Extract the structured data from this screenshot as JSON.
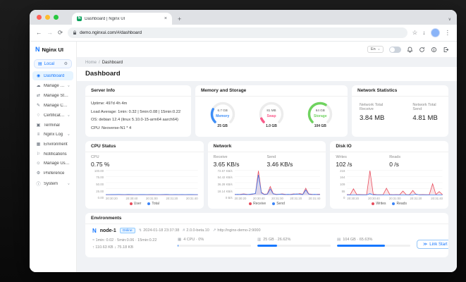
{
  "ui": {
    "chevron": "∨",
    "plus": "+",
    "close": "×",
    "back": "←",
    "forward": "→",
    "reload": "⟳",
    "star": "☆",
    "dots": "⋮",
    "up_arrow": "↑",
    "down_arrow": "↓",
    "sep": "/",
    "dot_sep": "·"
  },
  "browser": {
    "tab_title": "Dashboard | Nginx UI",
    "favicon_letter": "N",
    "url": "demo.nginxui.com/#/dashboard"
  },
  "brand": {
    "initial": "N",
    "name": "Nginx UI"
  },
  "header": {
    "language": "En"
  },
  "sidebar": {
    "selector": {
      "glyph": "▤",
      "label": "Local",
      "gear": "⚙"
    },
    "items": [
      {
        "label": "Dashboard",
        "glyph": "◉",
        "active": true
      },
      {
        "label": "Manage Sites",
        "glyph": "☁",
        "expandable": true
      },
      {
        "label": "Manage Streams",
        "glyph": "⇄"
      },
      {
        "label": "Manage Configs",
        "glyph": "✎"
      },
      {
        "label": "Certificates",
        "glyph": "♢",
        "expandable": true
      },
      {
        "label": "Terminal",
        "glyph": "▣"
      },
      {
        "label": "Nginx Log",
        "glyph": "≡",
        "expandable": true
      },
      {
        "label": "Environment",
        "glyph": "▦"
      },
      {
        "label": "Notifications",
        "glyph": "⚐"
      },
      {
        "label": "Manage Users",
        "glyph": "☺"
      },
      {
        "label": "Preference",
        "glyph": "⚙"
      },
      {
        "label": "System",
        "glyph": "ⓘ",
        "expandable": true
      }
    ]
  },
  "breadcrumb": {
    "home": "Home",
    "current": "Dashboard"
  },
  "page_title": "Dashboard",
  "server_info": {
    "title": "Server Info",
    "uptime": "Uptime: 497d 4h 4m",
    "load": "Load Average: 1min: 0.32 | 5min:0.08 | 15min:0.22",
    "os": "OS: debian 12.4 (linux 5.10.0-15-arm64 aarch64)",
    "cpu": "CPU: Neoverse-N1 * 4"
  },
  "memory_storage": {
    "title": "Memory and Storage",
    "gauges": [
      {
        "name": "Memory",
        "value": "6.7 GB",
        "total": "25 GB",
        "pct": 26.8,
        "color": "#3e8ef7"
      },
      {
        "name": "Swap",
        "value": "81 MB",
        "total": "1.0 GB",
        "pct": 7.9,
        "color": "#fa5a8a"
      },
      {
        "name": "Storage",
        "value": "64 GB",
        "total": "104 GB",
        "pct": 61.5,
        "color": "#6fd35f"
      }
    ]
  },
  "network_stats": {
    "title": "Network Statistics",
    "receive_label": "Network Total Receive",
    "receive_value": "3.84 MB",
    "send_label": "Network Total Send",
    "send_value": "4.81 MB"
  },
  "charts": [
    {
      "type": "line",
      "title": "CPU Status",
      "stats": [
        {
          "label": "CPU",
          "value": "0.75 %"
        }
      ],
      "y_ticks": [
        "100.00",
        "75.00",
        "50.00",
        "25.00",
        "0.00"
      ],
      "ymax": 100,
      "x_ticks": [
        "20:30:20",
        "20:30:40",
        "20:31:00",
        "20:31:20",
        "20:31:40"
      ],
      "ylabel_width": 18,
      "series": [
        {
          "name": "User",
          "color": "#e74c5c",
          "values": [
            0.8,
            0.7,
            0.9,
            0.8,
            1.0,
            0.9,
            0.8,
            1.2,
            0.9,
            0.8,
            0.7,
            0.9,
            0.8,
            0.7,
            1.0,
            0.9,
            0.8,
            0.7,
            0.9,
            1.1,
            0.8,
            0.7,
            0.9,
            0.8,
            1.0,
            0.7,
            0.8,
            0.9,
            0.7,
            0.8
          ]
        },
        {
          "name": "Total",
          "color": "#3a83f7",
          "values": [
            1.5,
            1.4,
            1.8,
            1.6,
            2.0,
            1.7,
            1.5,
            2.2,
            1.8,
            1.5,
            1.4,
            1.7,
            1.6,
            1.4,
            1.9,
            1.7,
            1.5,
            1.4,
            1.8,
            2.1,
            1.6,
            1.4,
            1.7,
            1.5,
            1.9,
            1.4,
            1.6,
            1.7,
            1.4,
            1.5
          ]
        }
      ]
    },
    {
      "type": "area",
      "title": "Network",
      "stats": [
        {
          "label": "Receive",
          "value": "3.65 KB/s"
        },
        {
          "label": "Send",
          "value": "3.46 KB/s"
        }
      ],
      "y_ticks": [
        "72.57 KB/s",
        "54.42 KB/s",
        "36.28 KB/s",
        "18.14 KB/s",
        "0 B/s"
      ],
      "ymax": 72.57,
      "x_ticks": [
        "20:30:20",
        "20:30:40",
        "20:31:00",
        "20:31:20",
        "20:31:40"
      ],
      "ylabel_width": 27,
      "series": [
        {
          "name": "Receive",
          "color": "#e74c5c",
          "values": [
            2,
            1,
            2,
            3,
            2,
            1,
            2,
            5,
            72,
            8,
            2,
            3,
            25,
            4,
            2,
            2,
            3,
            2,
            1,
            2,
            3,
            2,
            4,
            2,
            20,
            3,
            2,
            1,
            2,
            2
          ]
        },
        {
          "name": "Send",
          "color": "#3a83f7",
          "values": [
            1,
            2,
            1,
            2,
            1,
            2,
            3,
            4,
            60,
            6,
            1,
            2,
            18,
            3,
            1,
            2,
            2,
            1,
            2,
            1,
            2,
            3,
            2,
            1,
            15,
            2,
            1,
            2,
            1,
            1
          ]
        }
      ]
    },
    {
      "type": "area",
      "title": "Disk IO",
      "stats": [
        {
          "label": "Writes",
          "value": "102 /s"
        },
        {
          "label": "Reads",
          "value": "0 /s"
        }
      ],
      "y_ticks": [
        "218",
        "164",
        "109",
        "55",
        "0"
      ],
      "ymax": 218,
      "x_ticks": [
        "20:30:20",
        "20:30:40",
        "20:31:00",
        "20:31:20",
        "20:31:40"
      ],
      "ylabel_width": 13,
      "series": [
        {
          "name": "Writes",
          "color": "#e74c5c",
          "values": [
            3,
            2,
            55,
            4,
            3,
            2,
            3,
            218,
            6,
            3,
            2,
            3,
            60,
            4,
            2,
            3,
            2,
            35,
            3,
            2,
            40,
            3,
            2,
            3,
            2,
            3,
            100,
            4,
            30,
            3
          ]
        },
        {
          "name": "Reads",
          "color": "#3a83f7",
          "values": [
            0,
            0,
            0,
            0,
            0,
            0,
            0,
            12,
            0,
            0,
            0,
            0,
            0,
            0,
            0,
            0,
            0,
            0,
            0,
            0,
            0,
            8,
            0,
            0,
            0,
            0,
            0,
            0,
            0,
            0
          ]
        }
      ]
    }
  ],
  "environments": {
    "title": "Environments",
    "node": {
      "logo": "N",
      "name": "node-1",
      "status": "Online",
      "timestamp": "2024-01-18 23:37:38",
      "version": "2.0.0-beta.10",
      "url": "http://nginx-demo-2:9000",
      "load_avg": "1min: 0.02 · 5min:0.06 · 15min:0.22",
      "net_up": "110.63 KB",
      "net_down": "75.18 KB",
      "cpu": {
        "label": "4 CPU · 0%",
        "pct": 1
      },
      "memory": {
        "label": "25 GB · 26.62%",
        "pct": 26.62
      },
      "storage": {
        "label": "104 GB · 65.63%",
        "pct": 65.63
      },
      "action": "Link Start"
    }
  }
}
